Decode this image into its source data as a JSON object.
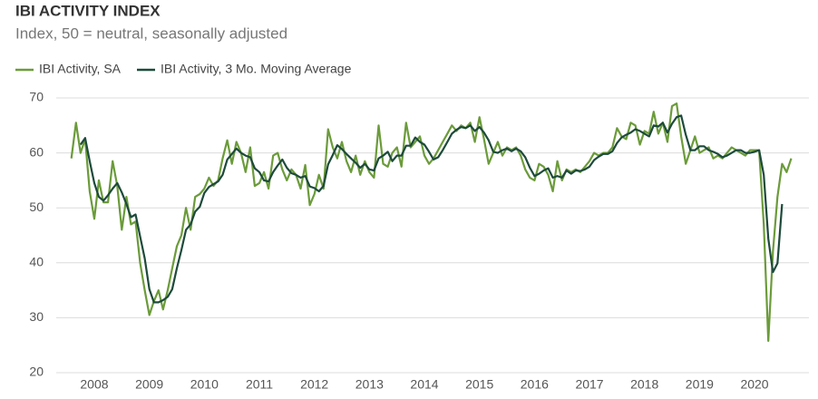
{
  "chart_data": {
    "type": "line",
    "title": "IBI ACTIVITY INDEX",
    "subtitle": "Index, 50 = neutral, seasonally adjusted",
    "categories": [
      null,
      null,
      null,
      null,
      null,
      "2008",
      null,
      null,
      null,
      null,
      null,
      null,
      null,
      null,
      null,
      null,
      null,
      "2009",
      null,
      null,
      null,
      null,
      null,
      null,
      null,
      null,
      null,
      null,
      null,
      "2010",
      null,
      null,
      null,
      null,
      null,
      null,
      null,
      null,
      null,
      null,
      null,
      "2011",
      null,
      null,
      null,
      null,
      null,
      null,
      null,
      null,
      null,
      null,
      null,
      "2012",
      null,
      null,
      null,
      null,
      null,
      null,
      null,
      null,
      null,
      null,
      null,
      "2013",
      null,
      null,
      null,
      null,
      null,
      null,
      null,
      null,
      null,
      null,
      null,
      "2014",
      null,
      null,
      null,
      null,
      null,
      null,
      null,
      null,
      null,
      null,
      null,
      "2015",
      null,
      null,
      null,
      null,
      null,
      null,
      null,
      null,
      null,
      null,
      null,
      "2016",
      null,
      null,
      null,
      null,
      null,
      null,
      null,
      null,
      null,
      null,
      null,
      "2017",
      null,
      null,
      null,
      null,
      null,
      null,
      null,
      null,
      null,
      null,
      null,
      "2018",
      null,
      null,
      null,
      null,
      null,
      null,
      null,
      null,
      null,
      null,
      null,
      "2019",
      null,
      null,
      null,
      null,
      null,
      null,
      null,
      null,
      null,
      null,
      null,
      "2020",
      null,
      null,
      null,
      null,
      null,
      null,
      null,
      null
    ],
    "series": [
      {
        "name": "IBI Activity, SA",
        "color": "#6b9b3a",
        "values": [
          59,
          65.5,
          60,
          62.5,
          53,
          48,
          55,
          51,
          51,
          58.5,
          54,
          46,
          52,
          47,
          47.5,
          40,
          35,
          30.5,
          33,
          35,
          31.5,
          35,
          39,
          43,
          45,
          50,
          46,
          52,
          52.5,
          53.5,
          55.5,
          54,
          55,
          59,
          62.3,
          58,
          62,
          60,
          56.5,
          61,
          54,
          54.5,
          56.5,
          53.5,
          59.5,
          60,
          57,
          55,
          57,
          56,
          53.5,
          57.8,
          50.5,
          52.5,
          56,
          53.5,
          64.3,
          61,
          59,
          62,
          58.5,
          56.5,
          59.5,
          56,
          58.5,
          56.5,
          55.5,
          65,
          58,
          57.5,
          60,
          61,
          57.5,
          65.5,
          61,
          62,
          63,
          59.5,
          58,
          59,
          60.5,
          62,
          63.5,
          65,
          64,
          65,
          64.5,
          65.5,
          62,
          66.5,
          62.5,
          58,
          60,
          62,
          59.5,
          61,
          60.5,
          61,
          59.5,
          57,
          55.5,
          55,
          58,
          57.5,
          56,
          53,
          58.5,
          55,
          57,
          56.5,
          57,
          56.5,
          57.5,
          58.5,
          60,
          59.5,
          60,
          60,
          61,
          64.5,
          63,
          62.5,
          65.5,
          65,
          61.5,
          64,
          63.5,
          67.5,
          63.5,
          65.5,
          62,
          68.5,
          69,
          63,
          58,
          60.5,
          63,
          60,
          60.5,
          61,
          59,
          59.5,
          59,
          60,
          61,
          60.5,
          60,
          59.5,
          60.5,
          60.5,
          60.5,
          47,
          25.8,
          42,
          52,
          58,
          56.5,
          59
        ]
      },
      {
        "name": "IBI Activity, 3 Mo. Moving Average",
        "color": "#1d4a3b",
        "values": [
          null,
          null,
          61.5,
          62.7,
          58.5,
          54.5,
          52,
          51.3,
          52.3,
          53.5,
          54.5,
          52.8,
          50.7,
          48.3,
          48.8,
          44.8,
          40.8,
          35.2,
          32.8,
          32.8,
          33.2,
          33.8,
          35.2,
          39,
          42.3,
          46,
          47,
          49.3,
          50.2,
          52.7,
          53.8,
          54.3,
          54.8,
          56,
          58.8,
          59.8,
          60.8,
          60,
          59.5,
          59.2,
          57.2,
          56.5,
          55,
          54.8,
          56.5,
          57.7,
          58.8,
          57.3,
          56.3,
          56,
          55.5,
          55.8,
          53.9,
          53.6,
          53,
          54,
          57.9,
          59.6,
          61.4,
          60.7,
          59.8,
          59,
          58.2,
          57.3,
          58,
          57,
          56.8,
          59,
          59.5,
          60.2,
          58.5,
          59.5,
          59.5,
          61.3,
          61.3,
          62.8,
          62,
          61.5,
          60.2,
          58.8,
          59.2,
          60.5,
          62,
          63.5,
          64.2,
          64.7,
          64.5,
          65,
          64,
          64.7,
          63.7,
          62.3,
          60.2,
          60,
          60.5,
          60.8,
          60.3,
          60.8,
          60.3,
          59.2,
          57.3,
          55.8,
          56.2,
          56.8,
          57.2,
          55.5,
          55.8,
          55.5,
          56.8,
          56.2,
          56.8,
          56.7,
          57,
          57.5,
          58.7,
          59.3,
          59.8,
          59.8,
          60.3,
          61.8,
          62.8,
          63.3,
          63.7,
          64.3,
          64,
          63.5,
          63,
          65,
          64.8,
          65.5,
          63.7,
          65.3,
          66.5,
          66.8,
          63.3,
          60.5,
          60.5,
          61.2,
          61.2,
          60.5,
          60.2,
          59.8,
          59.2,
          59.5,
          60,
          60.5,
          60.5,
          60,
          60,
          60.2,
          60.5,
          56,
          44.4,
          38.3,
          39.9,
          50.7,
          null,
          null
        ]
      }
    ],
    "ylim": [
      20,
      70
    ],
    "yticks": [
      20,
      30,
      40,
      50,
      60,
      70
    ],
    "grid": true,
    "legend": "top-left"
  }
}
